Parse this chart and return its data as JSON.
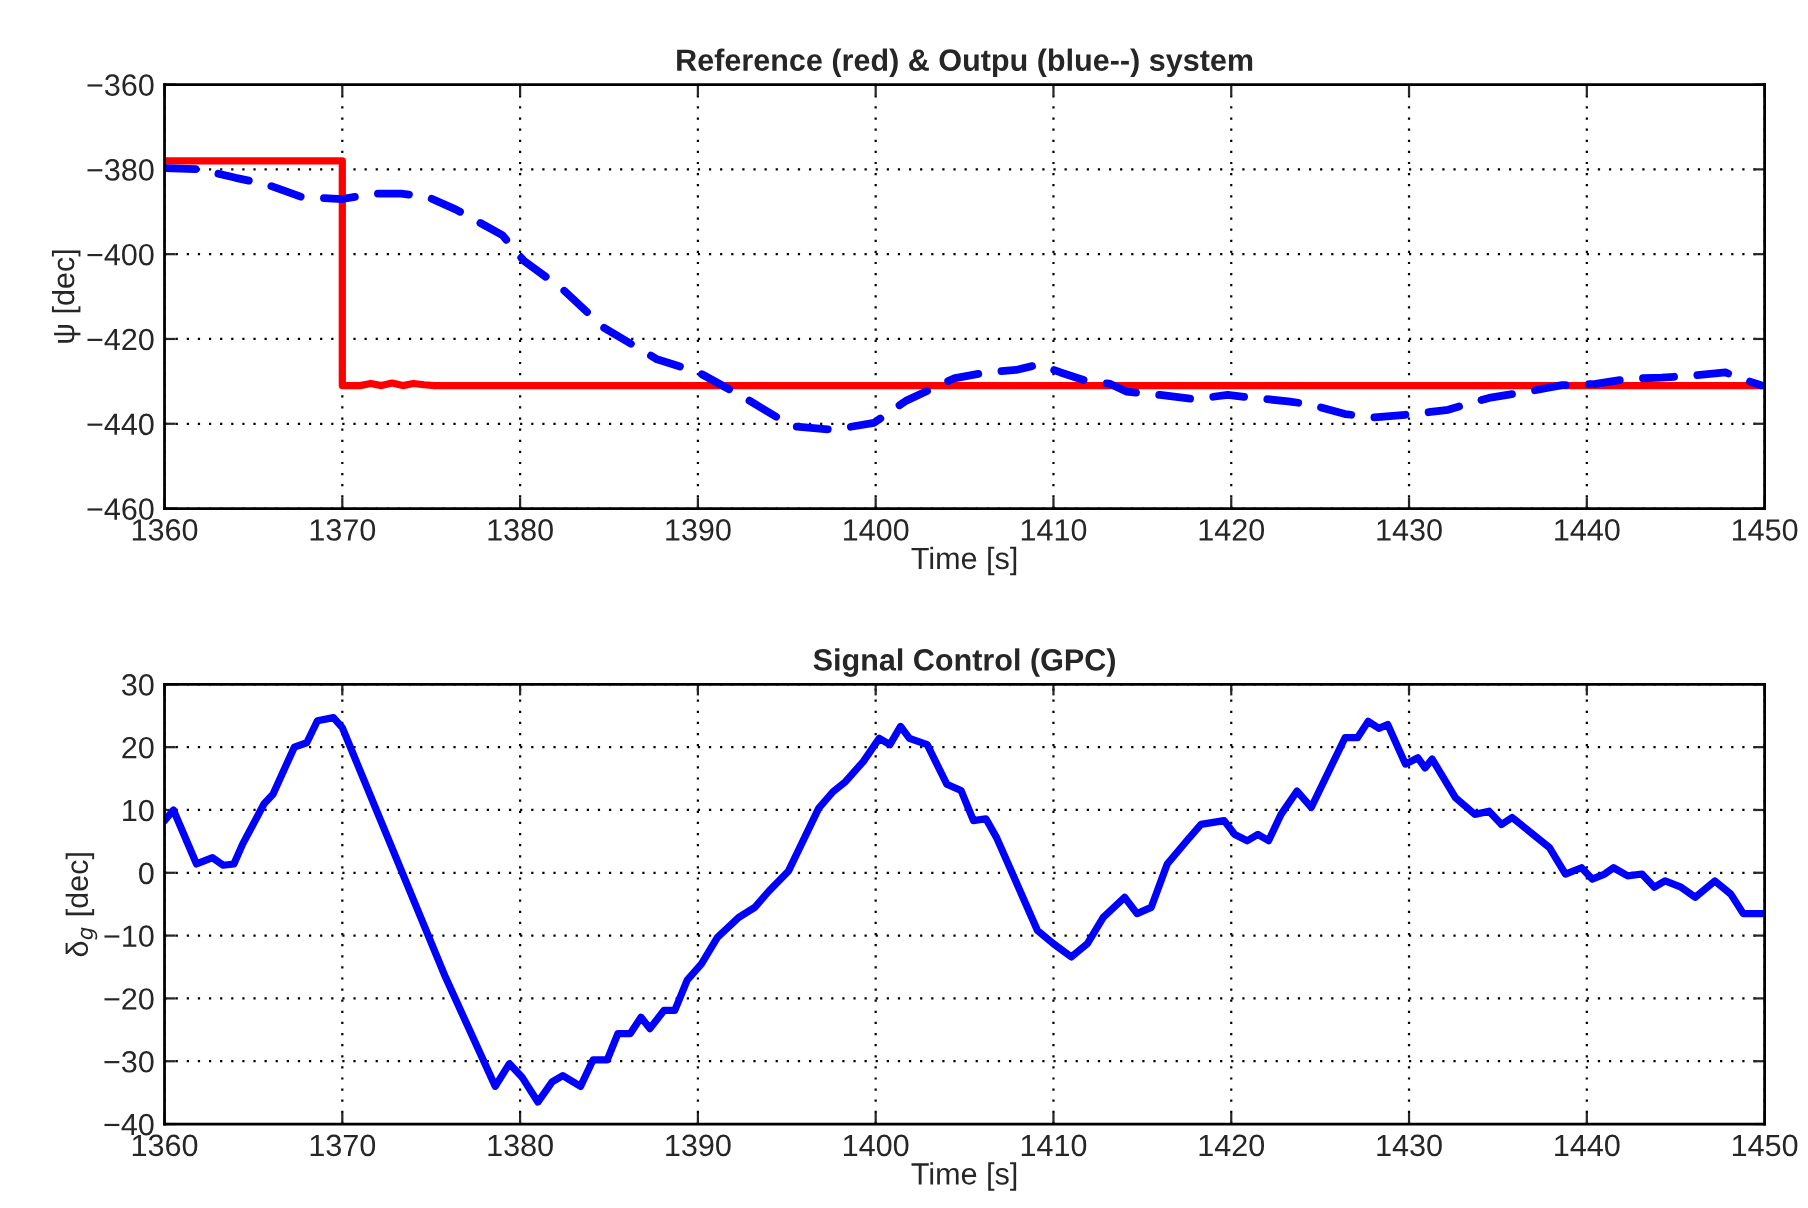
{
  "chart_data": [
    {
      "type": "line",
      "title": "Reference (red) & Outpu (blue--) system",
      "xlabel": "Time [s]",
      "ylabel": "ψ [dec]",
      "xlim": [
        1360,
        1450
      ],
      "ylim": [
        -460,
        -360
      ],
      "xticks": [
        1360,
        1370,
        1380,
        1390,
        1400,
        1410,
        1420,
        1430,
        1440,
        1450
      ],
      "yticks": [
        {
          "value": -460,
          "label": "−460"
        },
        {
          "value": -440,
          "label": "−440"
        },
        {
          "value": -420,
          "label": "−420"
        },
        {
          "value": -400,
          "label": "−400"
        },
        {
          "value": -380,
          "label": "−380"
        },
        {
          "value": -360,
          "label": "−360"
        }
      ],
      "grid": true,
      "series": [
        {
          "color": "#ff0000",
          "line_style": "solid",
          "x": [
            1360,
            1370,
            1370,
            1371,
            1371.6,
            1372.2,
            1372.8,
            1373.4,
            1374,
            1374.6,
            1375.2,
            1450
          ],
          "values": [
            -378,
            -378,
            -431,
            -431,
            -430.5,
            -431,
            -430.4,
            -431,
            -430.5,
            -430.8,
            -431,
            -431
          ]
        },
        {
          "color": "#0000ff",
          "line_style": "dashed",
          "x": [
            1360,
            1362,
            1364,
            1365.7,
            1367.7,
            1370,
            1371.8,
            1373.3,
            1374.8,
            1376.4,
            1379,
            1380.2,
            1382.4,
            1384.7,
            1387.7,
            1390,
            1392.6,
            1395.3,
            1397.6,
            1399.9,
            1401.7,
            1404.4,
            1406.2,
            1407.9,
            1409.2,
            1410.4,
            1411.7,
            1413.2,
            1414.1,
            1416,
            1417.9,
            1419.8,
            1421.3,
            1423.2,
            1424.5,
            1426.4,
            1428,
            1430.3,
            1432.2,
            1434.5,
            1436.7,
            1438.6,
            1440.5,
            1442.3,
            1444.2,
            1446.1,
            1447.8,
            1448.7,
            1449.8
          ],
          "values": [
            -379.7,
            -380,
            -382,
            -383.5,
            -386.5,
            -387,
            -385.7,
            -385.7,
            -386.5,
            -389.5,
            -395.5,
            -401.5,
            -408.3,
            -417.3,
            -424.8,
            -427.8,
            -433.8,
            -440.6,
            -441.4,
            -439.8,
            -434.6,
            -429.3,
            -427.9,
            -427.3,
            -426,
            -427.9,
            -429.7,
            -430.6,
            -432.4,
            -433.2,
            -434.2,
            -433.2,
            -433.9,
            -434.7,
            -435.5,
            -437.7,
            -438.5,
            -437.7,
            -436.7,
            -433.9,
            -432.4,
            -430.9,
            -430.6,
            -429.4,
            -429.1,
            -428.6,
            -427.9,
            -429.4,
            -430.9
          ]
        }
      ]
    },
    {
      "type": "line",
      "title": "Signal Control (GPC)",
      "xlabel": "Time [s]",
      "ylabel": "δ$_{g}$ [dec]",
      "xlim": [
        1360,
        1450
      ],
      "ylim": [
        -40,
        30
      ],
      "xticks": [
        1360,
        1370,
        1380,
        1390,
        1400,
        1410,
        1420,
        1430,
        1440,
        1450
      ],
      "yticks": [
        {
          "value": -40,
          "label": "−40"
        },
        {
          "value": -30,
          "label": "−30"
        },
        {
          "value": -20,
          "label": "−20"
        },
        {
          "value": -10,
          "label": "−10"
        },
        0,
        10,
        20,
        30
      ],
      "grid": true,
      "series": [
        {
          "color": "#0000ff",
          "line_style": "solid",
          "x": [
            1360,
            1360.5,
            1361.8,
            1362.7,
            1363.3,
            1363.9,
            1364.4,
            1365.6,
            1366.1,
            1367.3,
            1368,
            1368.6,
            1369.5,
            1370,
            1375.8,
            1378.6,
            1379.4,
            1380.1,
            1381,
            1381.8,
            1382.4,
            1383.4,
            1384.1,
            1384.9,
            1385.5,
            1386.2,
            1386.8,
            1387.3,
            1388.1,
            1388.7,
            1389.4,
            1390.2,
            1391.1,
            1392.3,
            1393.2,
            1394,
            1395.1,
            1396.8,
            1397.6,
            1398.3,
            1399.3,
            1400.2,
            1400.8,
            1401.4,
            1401.9,
            1402.9,
            1404,
            1404.8,
            1405.5,
            1406.2,
            1406.8,
            1409.1,
            1410,
            1411,
            1411.9,
            1412.8,
            1414,
            1414.7,
            1415.5,
            1416.4,
            1417.5,
            1418.3,
            1419.6,
            1420.2,
            1420.9,
            1421.5,
            1422.1,
            1422.8,
            1423.7,
            1424.5,
            1426.4,
            1427.1,
            1427.7,
            1428.3,
            1428.8,
            1429.8,
            1430.5,
            1430.9,
            1431.3,
            1432.6,
            1433.7,
            1434.5,
            1435.2,
            1435.8,
            1437.9,
            1438.8,
            1439.7,
            1440.3,
            1441,
            1441.5,
            1442.3,
            1443.1,
            1443.8,
            1444.4,
            1445.3,
            1446.1,
            1447.2,
            1448.1,
            1448.8,
            1450
          ],
          "values": [
            8.3,
            10,
            1.4,
            2.4,
            1.2,
            1.4,
            4.6,
            11,
            12.5,
            20,
            20.7,
            24.2,
            24.7,
            23.1,
            -16.6,
            -34,
            -30.4,
            -32.5,
            -36.5,
            -33.3,
            -32.3,
            -34,
            -29.8,
            -29.8,
            -25.6,
            -25.6,
            -23,
            -24.8,
            -21.9,
            -21.9,
            -17.1,
            -14.5,
            -10.3,
            -7.1,
            -5.5,
            -2.9,
            0.3,
            10.3,
            12.9,
            14.5,
            17.7,
            21.4,
            20.4,
            23.3,
            21.4,
            20.4,
            14.1,
            13.1,
            8.3,
            8.6,
            5.6,
            -9.2,
            -11.3,
            -13.4,
            -11.3,
            -7.1,
            -3.9,
            -6.5,
            -5.5,
            1.4,
            5.1,
            7.7,
            8.3,
            6.1,
            5.1,
            6.1,
            5.1,
            9.3,
            13,
            10.4,
            21.5,
            21.5,
            24.1,
            23,
            23.6,
            17.3,
            18.3,
            16.7,
            18.1,
            12,
            9.3,
            9.8,
            7.7,
            8.8,
            4,
            -0.2,
            0.8,
            -1,
            -0.2,
            0.8,
            -0.5,
            -0.2,
            -2.3,
            -1.3,
            -2.3,
            -3.9,
            -1.3,
            -3.4,
            -6.5,
            -6.5
          ]
        }
      ]
    }
  ]
}
